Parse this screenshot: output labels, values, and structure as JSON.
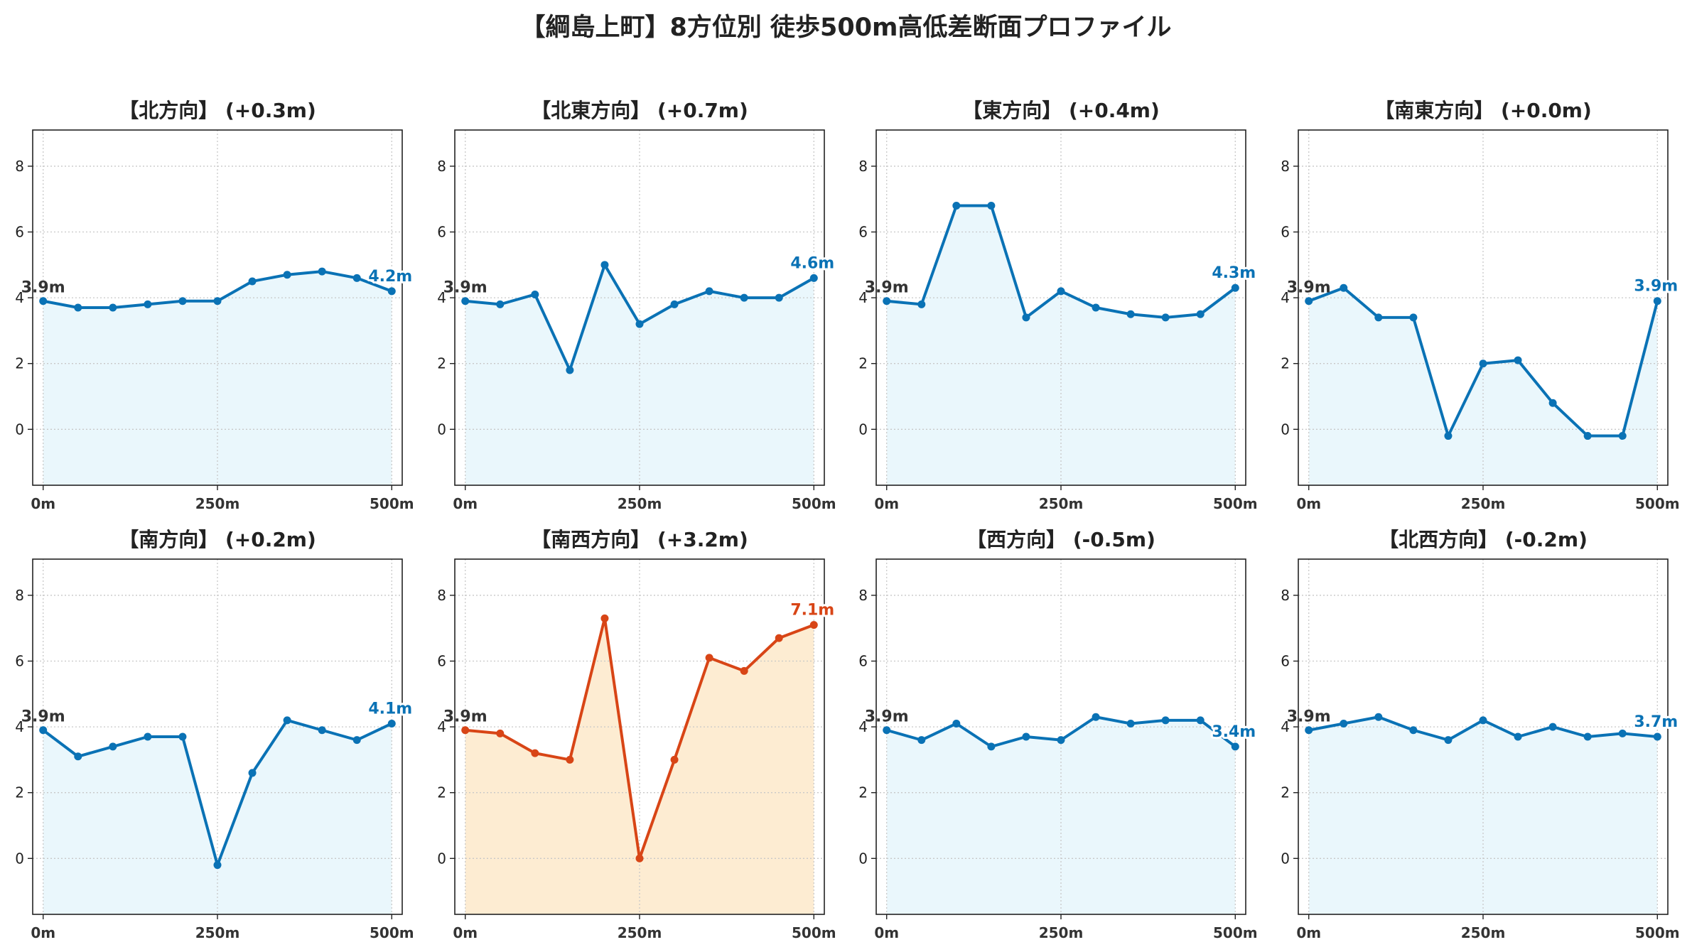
{
  "title": "【綱島上町】8方位別 徒歩500m高低差断面プロファイル",
  "colors": {
    "normal_line": "#0a72b5",
    "normal_fill": "#eaf7fc",
    "highlight_line": "#d84516",
    "highlight_fill": "#fdecd2",
    "grid": "#c8c8c8"
  },
  "chart_data": {
    "type": "line",
    "x": [
      0,
      50,
      100,
      150,
      200,
      250,
      300,
      350,
      400,
      450,
      500
    ],
    "xticks": [
      0,
      250,
      500
    ],
    "xtick_labels": [
      "0m",
      "250m",
      "500m"
    ],
    "yticks": [
      0,
      2,
      4,
      6,
      8
    ],
    "ylim": [
      -1.7,
      9.1
    ],
    "xlim": [
      -15,
      515
    ],
    "grid": true,
    "panels": [
      {
        "title": "【北方向】 (+0.3m)",
        "values": [
          3.9,
          3.7,
          3.7,
          3.8,
          3.9,
          3.9,
          4.5,
          4.7,
          4.8,
          4.6,
          4.2
        ],
        "start_label": "3.9m",
        "end_label": "4.2m",
        "highlight": false
      },
      {
        "title": "【北東方向】 (+0.7m)",
        "values": [
          3.9,
          3.8,
          4.1,
          1.8,
          5.0,
          3.2,
          3.8,
          4.2,
          4.0,
          4.0,
          4.6
        ],
        "start_label": "3.9m",
        "end_label": "4.6m",
        "highlight": false
      },
      {
        "title": "【東方向】 (+0.4m)",
        "values": [
          3.9,
          3.8,
          6.8,
          6.8,
          3.4,
          4.2,
          3.7,
          3.5,
          3.4,
          3.5,
          4.3
        ],
        "start_label": "3.9m",
        "end_label": "4.3m",
        "highlight": false
      },
      {
        "title": "【南東方向】 (+0.0m)",
        "values": [
          3.9,
          4.3,
          3.4,
          3.4,
          -0.2,
          2.0,
          2.1,
          0.8,
          -0.2,
          -0.2,
          3.9
        ],
        "start_label": "3.9m",
        "end_label": "3.9m",
        "highlight": false
      },
      {
        "title": "【南方向】 (+0.2m)",
        "values": [
          3.9,
          3.1,
          3.4,
          3.7,
          3.7,
          -0.2,
          2.6,
          4.2,
          3.9,
          3.6,
          4.1
        ],
        "start_label": "3.9m",
        "end_label": "4.1m",
        "highlight": false
      },
      {
        "title": "【南西方向】 (+3.2m)",
        "values": [
          3.9,
          3.8,
          3.2,
          3.0,
          7.3,
          0.0,
          3.0,
          6.1,
          5.7,
          6.7,
          7.1
        ],
        "start_label": "3.9m",
        "end_label": "7.1m",
        "highlight": true
      },
      {
        "title": "【西方向】 (-0.5m)",
        "values": [
          3.9,
          3.6,
          4.1,
          3.4,
          3.7,
          3.6,
          4.3,
          4.1,
          4.2,
          4.2,
          3.4
        ],
        "start_label": "3.9m",
        "end_label": "3.4m",
        "highlight": false
      },
      {
        "title": "【北西方向】 (-0.2m)",
        "values": [
          3.9,
          4.1,
          4.3,
          3.9,
          3.6,
          4.2,
          3.7,
          4.0,
          3.7,
          3.8,
          3.7
        ],
        "start_label": "3.9m",
        "end_label": "3.7m",
        "highlight": false
      }
    ]
  }
}
